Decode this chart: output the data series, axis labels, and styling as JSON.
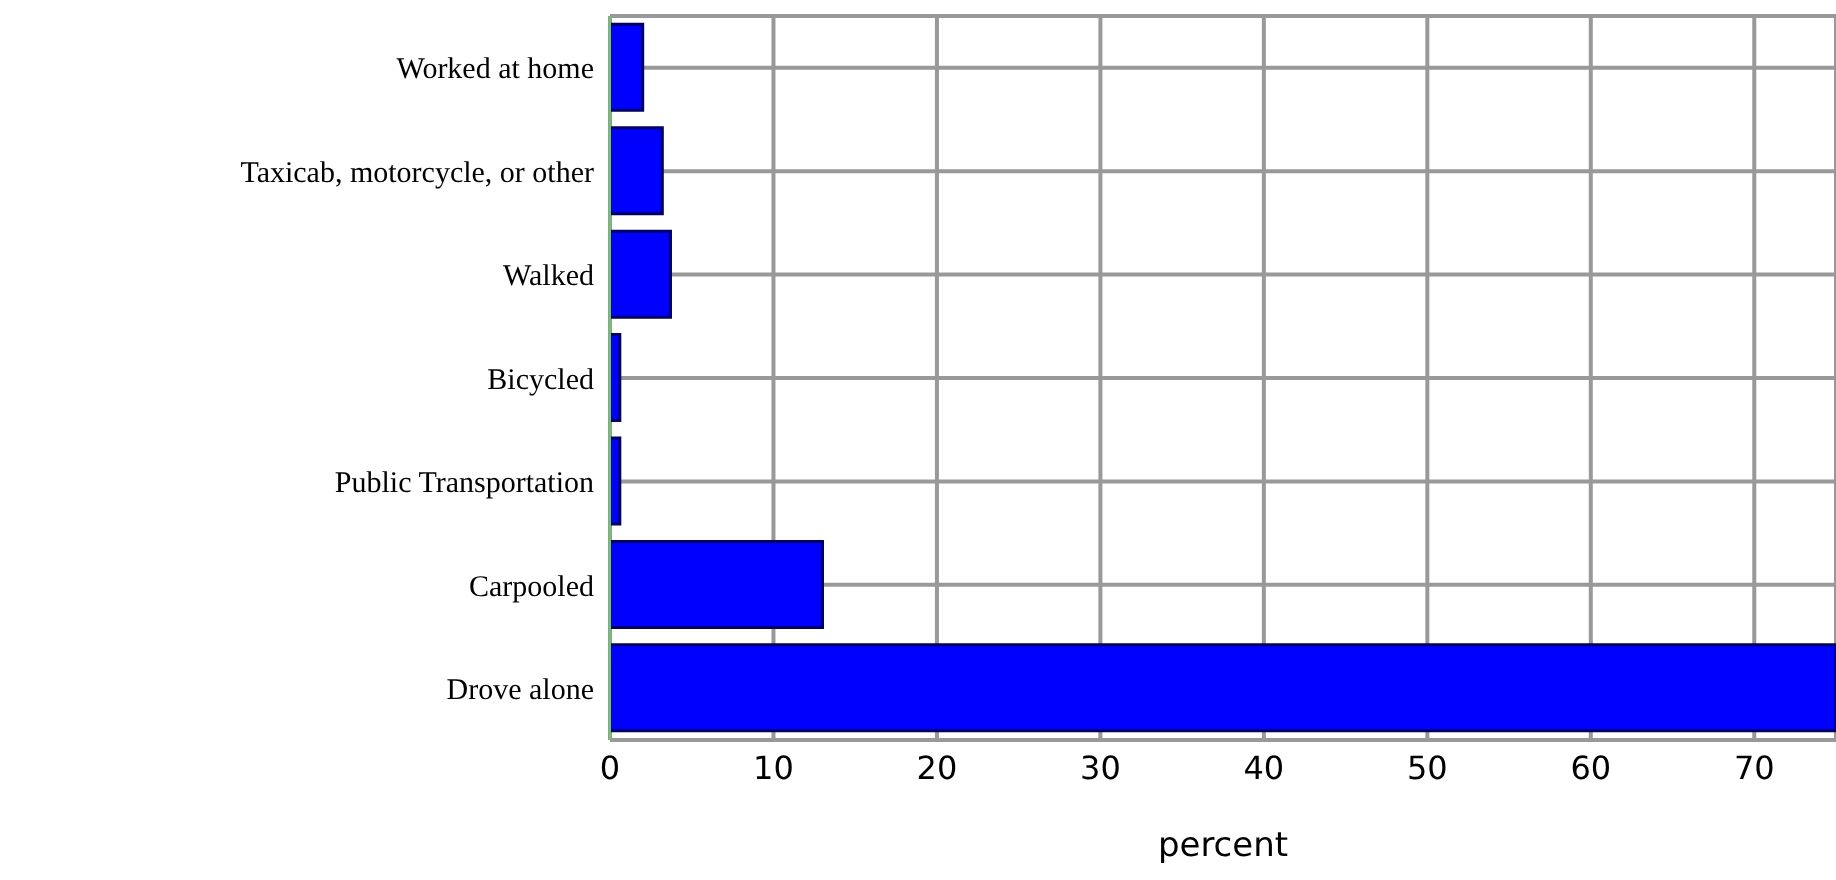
{
  "chart_data": {
    "type": "bar",
    "orientation": "horizontal",
    "xlabel": "percent",
    "categories": [
      "Worked at home",
      "Taxicab, motorcycle, or other",
      "Walked",
      "Bicycled",
      "Public Transportation",
      "Carpooled",
      "Drove alone"
    ],
    "values": [
      2.0,
      3.2,
      3.7,
      0.6,
      0.6,
      13.0,
      75
    ],
    "color": "#0000ff",
    "xlim": [
      0,
      75
    ],
    "xticks": [
      0,
      10,
      20,
      30,
      40,
      50,
      60,
      70
    ],
    "grid": true
  }
}
